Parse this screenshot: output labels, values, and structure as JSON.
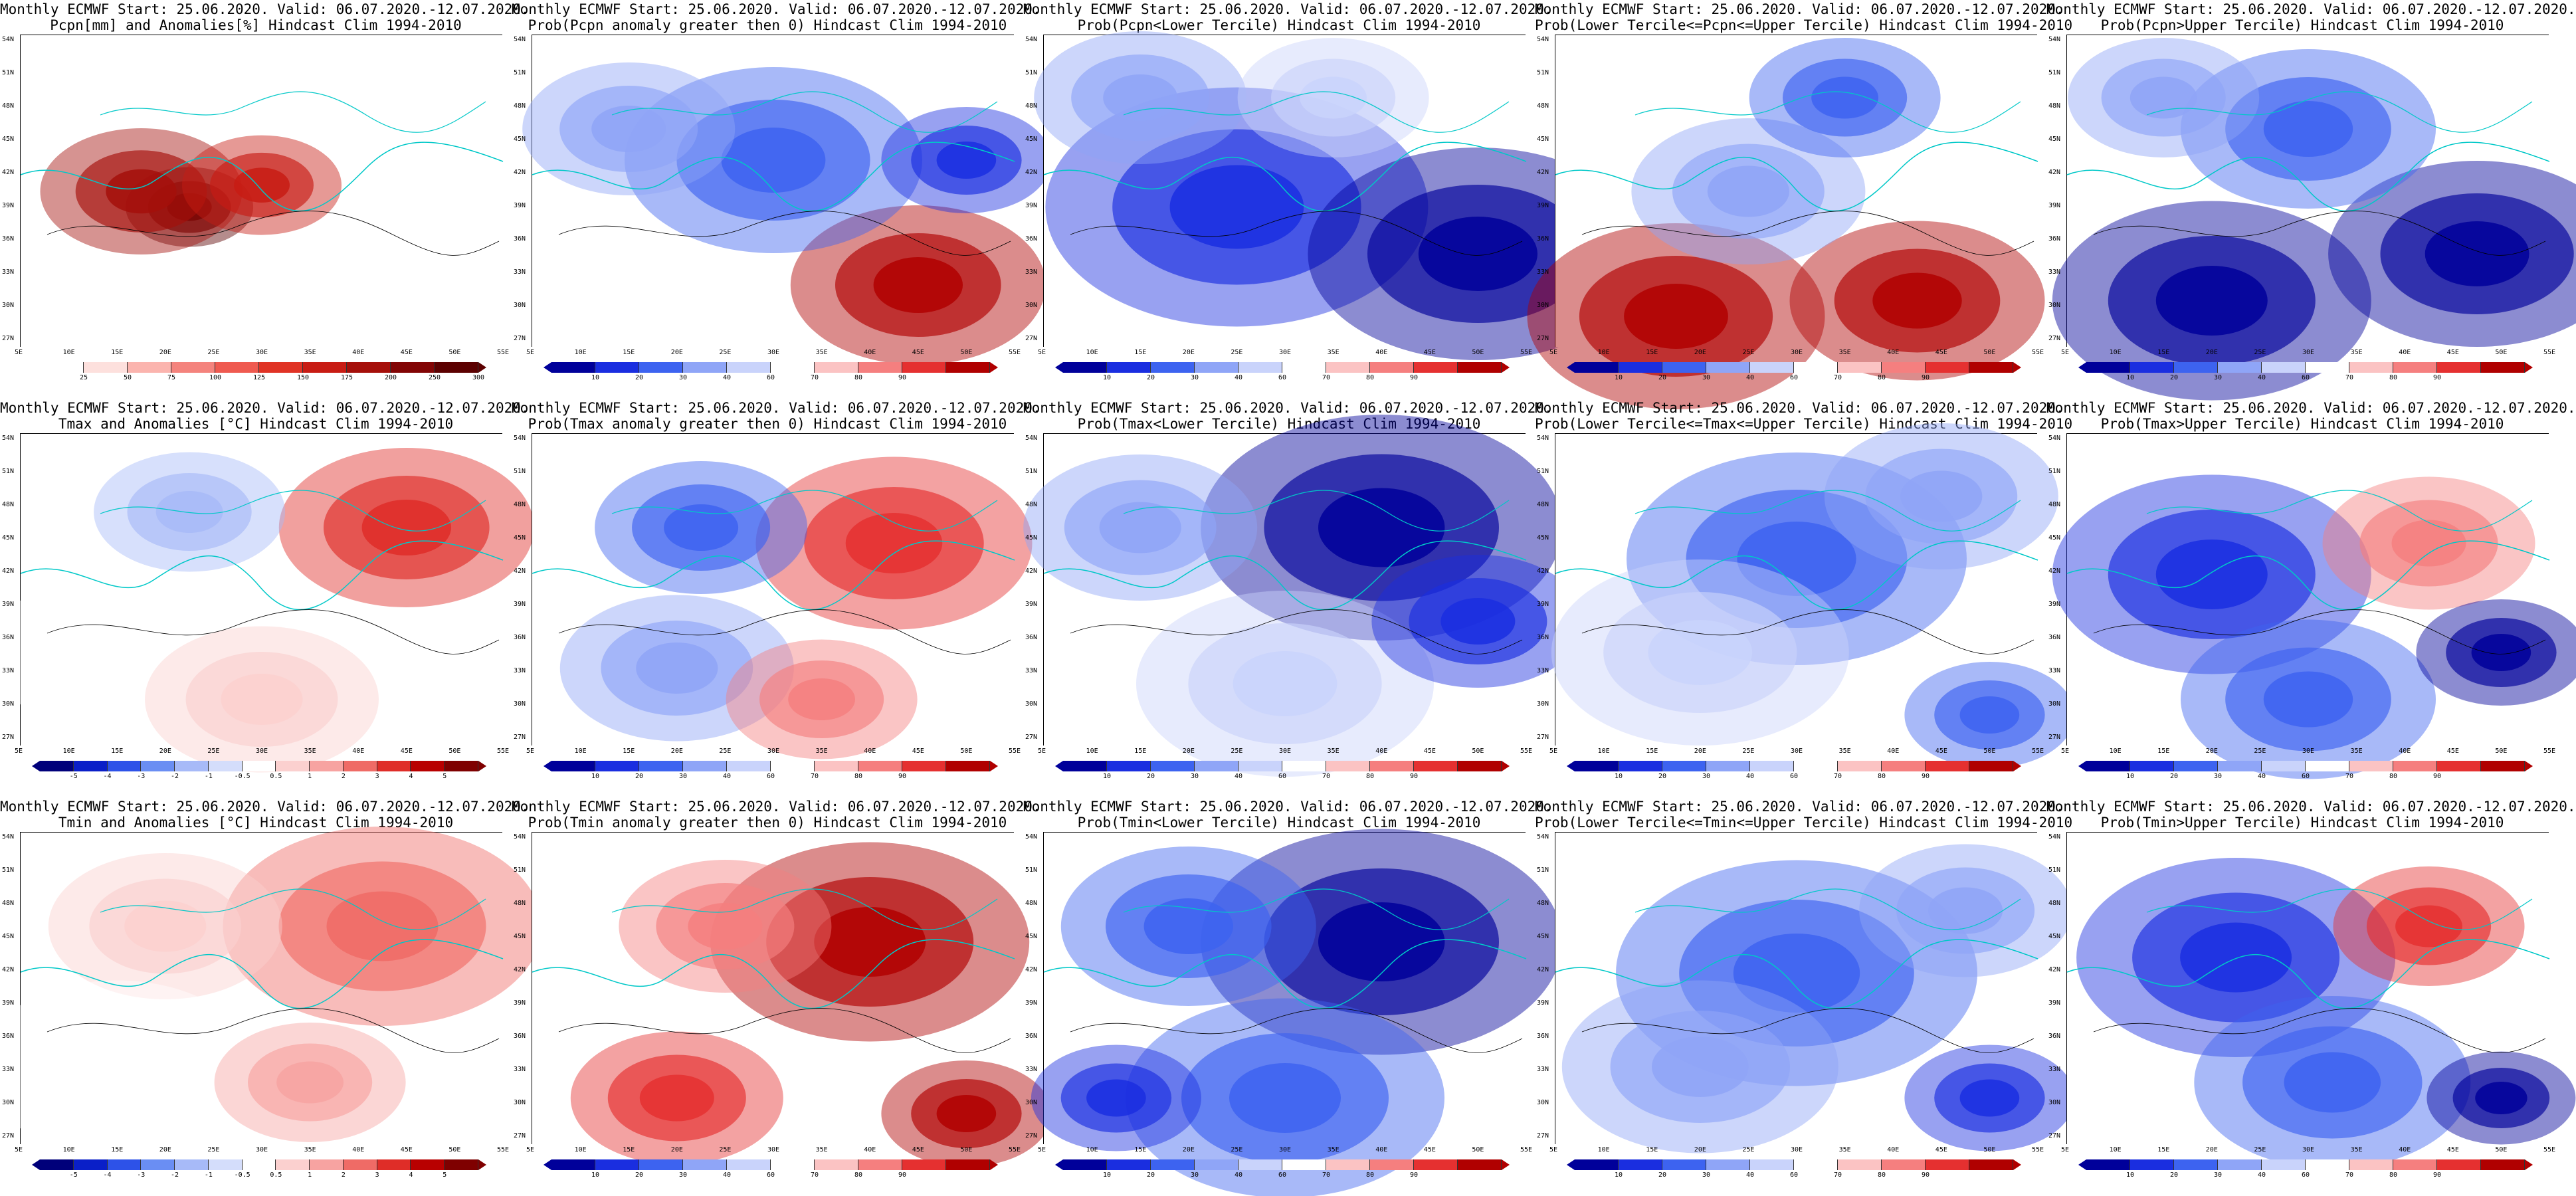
{
  "panels": [
    {
      "title1": "Monthly ECMWF Start: 25.06.2020. Valid: 06.07.2020.-12.07.2020.",
      "title2": "Pcpn[mm] and Anomalies[%] Hindcast Clim 1994-2010",
      "scale": "precip",
      "ticks": [
        "25",
        "50",
        "75",
        "100",
        "125",
        "150",
        "175",
        "200",
        "250",
        "300"
      ]
    },
    {
      "title1": "Monthly ECMWF Start: 25.06.2020. Valid: 06.07.2020.-12.07.2020.",
      "title2": "Prob(Pcpn anomaly greater then 0) Hindcast Clim 1994-2010",
      "scale": "prob",
      "ticks": [
        "10",
        "20",
        "30",
        "40",
        "60",
        "70",
        "80",
        "90"
      ]
    },
    {
      "title1": "Monthly ECMWF Start: 25.06.2020. Valid: 06.07.2020.-12.07.2020.",
      "title2": "Prob(Pcpn<Lower Tercile) Hindcast Clim 1994-2010",
      "scale": "prob",
      "ticks": [
        "10",
        "20",
        "30",
        "40",
        "60",
        "70",
        "80",
        "90"
      ]
    },
    {
      "title1": "Monthly ECMWF Start: 25.06.2020. Valid: 06.07.2020.-12.07.2020.",
      "title2": "Prob(Lower Tercile<=Pcpn<=Upper Tercile) Hindcast Clim 1994-2010",
      "scale": "prob",
      "ticks": [
        "10",
        "20",
        "30",
        "40",
        "60",
        "70",
        "80",
        "90"
      ]
    },
    {
      "title1": "Monthly ECMWF Start: 25.06.2020. Valid: 06.07.2020.-12.07.2020.",
      "title2": "Prob(Pcpn>Upper Tercile) Hindcast Clim 1994-2010",
      "scale": "prob",
      "ticks": [
        "10",
        "20",
        "30",
        "40",
        "60",
        "70",
        "80",
        "90"
      ]
    },
    {
      "title1": "Monthly ECMWF Start: 25.06.2020. Valid: 06.07.2020.-12.07.2020.",
      "title2": "Tmax and Anomalies [°C] Hindcast Clim 1994-2010",
      "scale": "anom",
      "ticks": [
        "-5",
        "-4",
        "-3",
        "-2",
        "-1",
        "-0.5",
        "0.5",
        "1",
        "2",
        "3",
        "4",
        "5"
      ]
    },
    {
      "title1": "Monthly ECMWF Start: 25.06.2020. Valid: 06.07.2020.-12.07.2020.",
      "title2": "Prob(Tmax anomaly greater then 0) Hindcast Clim 1994-2010",
      "scale": "prob",
      "ticks": [
        "10",
        "20",
        "30",
        "40",
        "60",
        "70",
        "80",
        "90"
      ]
    },
    {
      "title1": "Monthly ECMWF Start: 25.06.2020. Valid: 06.07.2020.-12.07.2020.",
      "title2": "Prob(Tmax<Lower Tercile) Hindcast Clim 1994-2010",
      "scale": "prob",
      "ticks": [
        "10",
        "20",
        "30",
        "40",
        "60",
        "70",
        "80",
        "90"
      ]
    },
    {
      "title1": "Monthly ECMWF Start: 25.06.2020. Valid: 06.07.2020.-12.07.2020.",
      "title2": "Prob(Lower Tercile<=Tmax<=Upper Tercile) Hindcast Clim 1994-2010",
      "scale": "prob",
      "ticks": [
        "10",
        "20",
        "30",
        "40",
        "60",
        "70",
        "80",
        "90"
      ]
    },
    {
      "title1": "Monthly ECMWF Start: 25.06.2020. Valid: 06.07.2020.-12.07.2020.",
      "title2": "Prob(Tmax>Upper Tercile) Hindcast Clim 1994-2010",
      "scale": "prob",
      "ticks": [
        "10",
        "20",
        "30",
        "40",
        "60",
        "70",
        "80",
        "90"
      ]
    },
    {
      "title1": "Monthly ECMWF Start: 25.06.2020. Valid: 06.07.2020.-12.07.2020.",
      "title2": "Tmin and Anomalies [°C] Hindcast Clim 1994-2010",
      "scale": "anom",
      "ticks": [
        "-5",
        "-4",
        "-3",
        "-2",
        "-1",
        "-0.5",
        "0.5",
        "1",
        "2",
        "3",
        "4",
        "5"
      ]
    },
    {
      "title1": "Monthly ECMWF Start: 25.06.2020. Valid: 06.07.2020.-12.07.2020.",
      "title2": "Prob(Tmin anomaly greater then 0) Hindcast Clim 1994-2010",
      "scale": "prob",
      "ticks": [
        "10",
        "20",
        "30",
        "40",
        "60",
        "70",
        "80",
        "90"
      ]
    },
    {
      "title1": "Monthly ECMWF Start: 25.06.2020. Valid: 06.07.2020.-12.07.2020.",
      "title2": "Prob(Tmin<Lower Tercile) Hindcast Clim 1994-2010",
      "scale": "prob",
      "ticks": [
        "10",
        "20",
        "30",
        "40",
        "60",
        "70",
        "80",
        "90"
      ]
    },
    {
      "title1": "Monthly ECMWF Start: 25.06.2020. Valid: 06.07.2020.-12.07.2020.",
      "title2": "Prob(Lower Tercile<=Tmin<=Upper Tercile) Hindcast Clim 1994-2010",
      "scale": "prob",
      "ticks": [
        "10",
        "20",
        "30",
        "40",
        "60",
        "70",
        "80",
        "90"
      ]
    },
    {
      "title1": "Monthly ECMWF Start: 25.06.2020. Valid: 06.07.2020.-12.07.2020.",
      "title2": "Prob(Tmin>Upper Tercile) Hindcast Clim 1994-2010",
      "scale": "prob",
      "ticks": [
        "10",
        "20",
        "30",
        "40",
        "60",
        "70",
        "80",
        "90"
      ]
    }
  ],
  "lat_labels": [
    "54N",
    "51N",
    "48N",
    "45N",
    "42N",
    "39N",
    "36N",
    "33N",
    "30N",
    "27N"
  ],
  "lon_labels": [
    "5E",
    "10E",
    "15E",
    "20E",
    "25E",
    "30E",
    "35E",
    "40E",
    "45E",
    "50E",
    "55E"
  ],
  "palettes": {
    "precip": [
      "#ffffff",
      "#fde0dd",
      "#fbb4ae",
      "#f4837d",
      "#ef5a50",
      "#e03325",
      "#c81c14",
      "#a50f0a",
      "#820505",
      "#5c0000"
    ],
    "prob": [
      "#00009a",
      "#1a2ee0",
      "#3d63f0",
      "#8fa5f7",
      "#c9d3fb",
      "#ffffff",
      "#fbc3c3",
      "#f57f7f",
      "#e53030",
      "#b00000"
    ],
    "anom": [
      "#00007a",
      "#0a1fc8",
      "#2d52e8",
      "#6a8ef3",
      "#a7baf8",
      "#d4ddfb",
      "#ffffff",
      "#fbd0cf",
      "#f7a3a1",
      "#ef6b66",
      "#df2d28",
      "#b80000",
      "#7f0000"
    ]
  },
  "colors": {
    "coast": "#00c8c8",
    "contour": "#000000",
    "frame": "#000000"
  }
}
